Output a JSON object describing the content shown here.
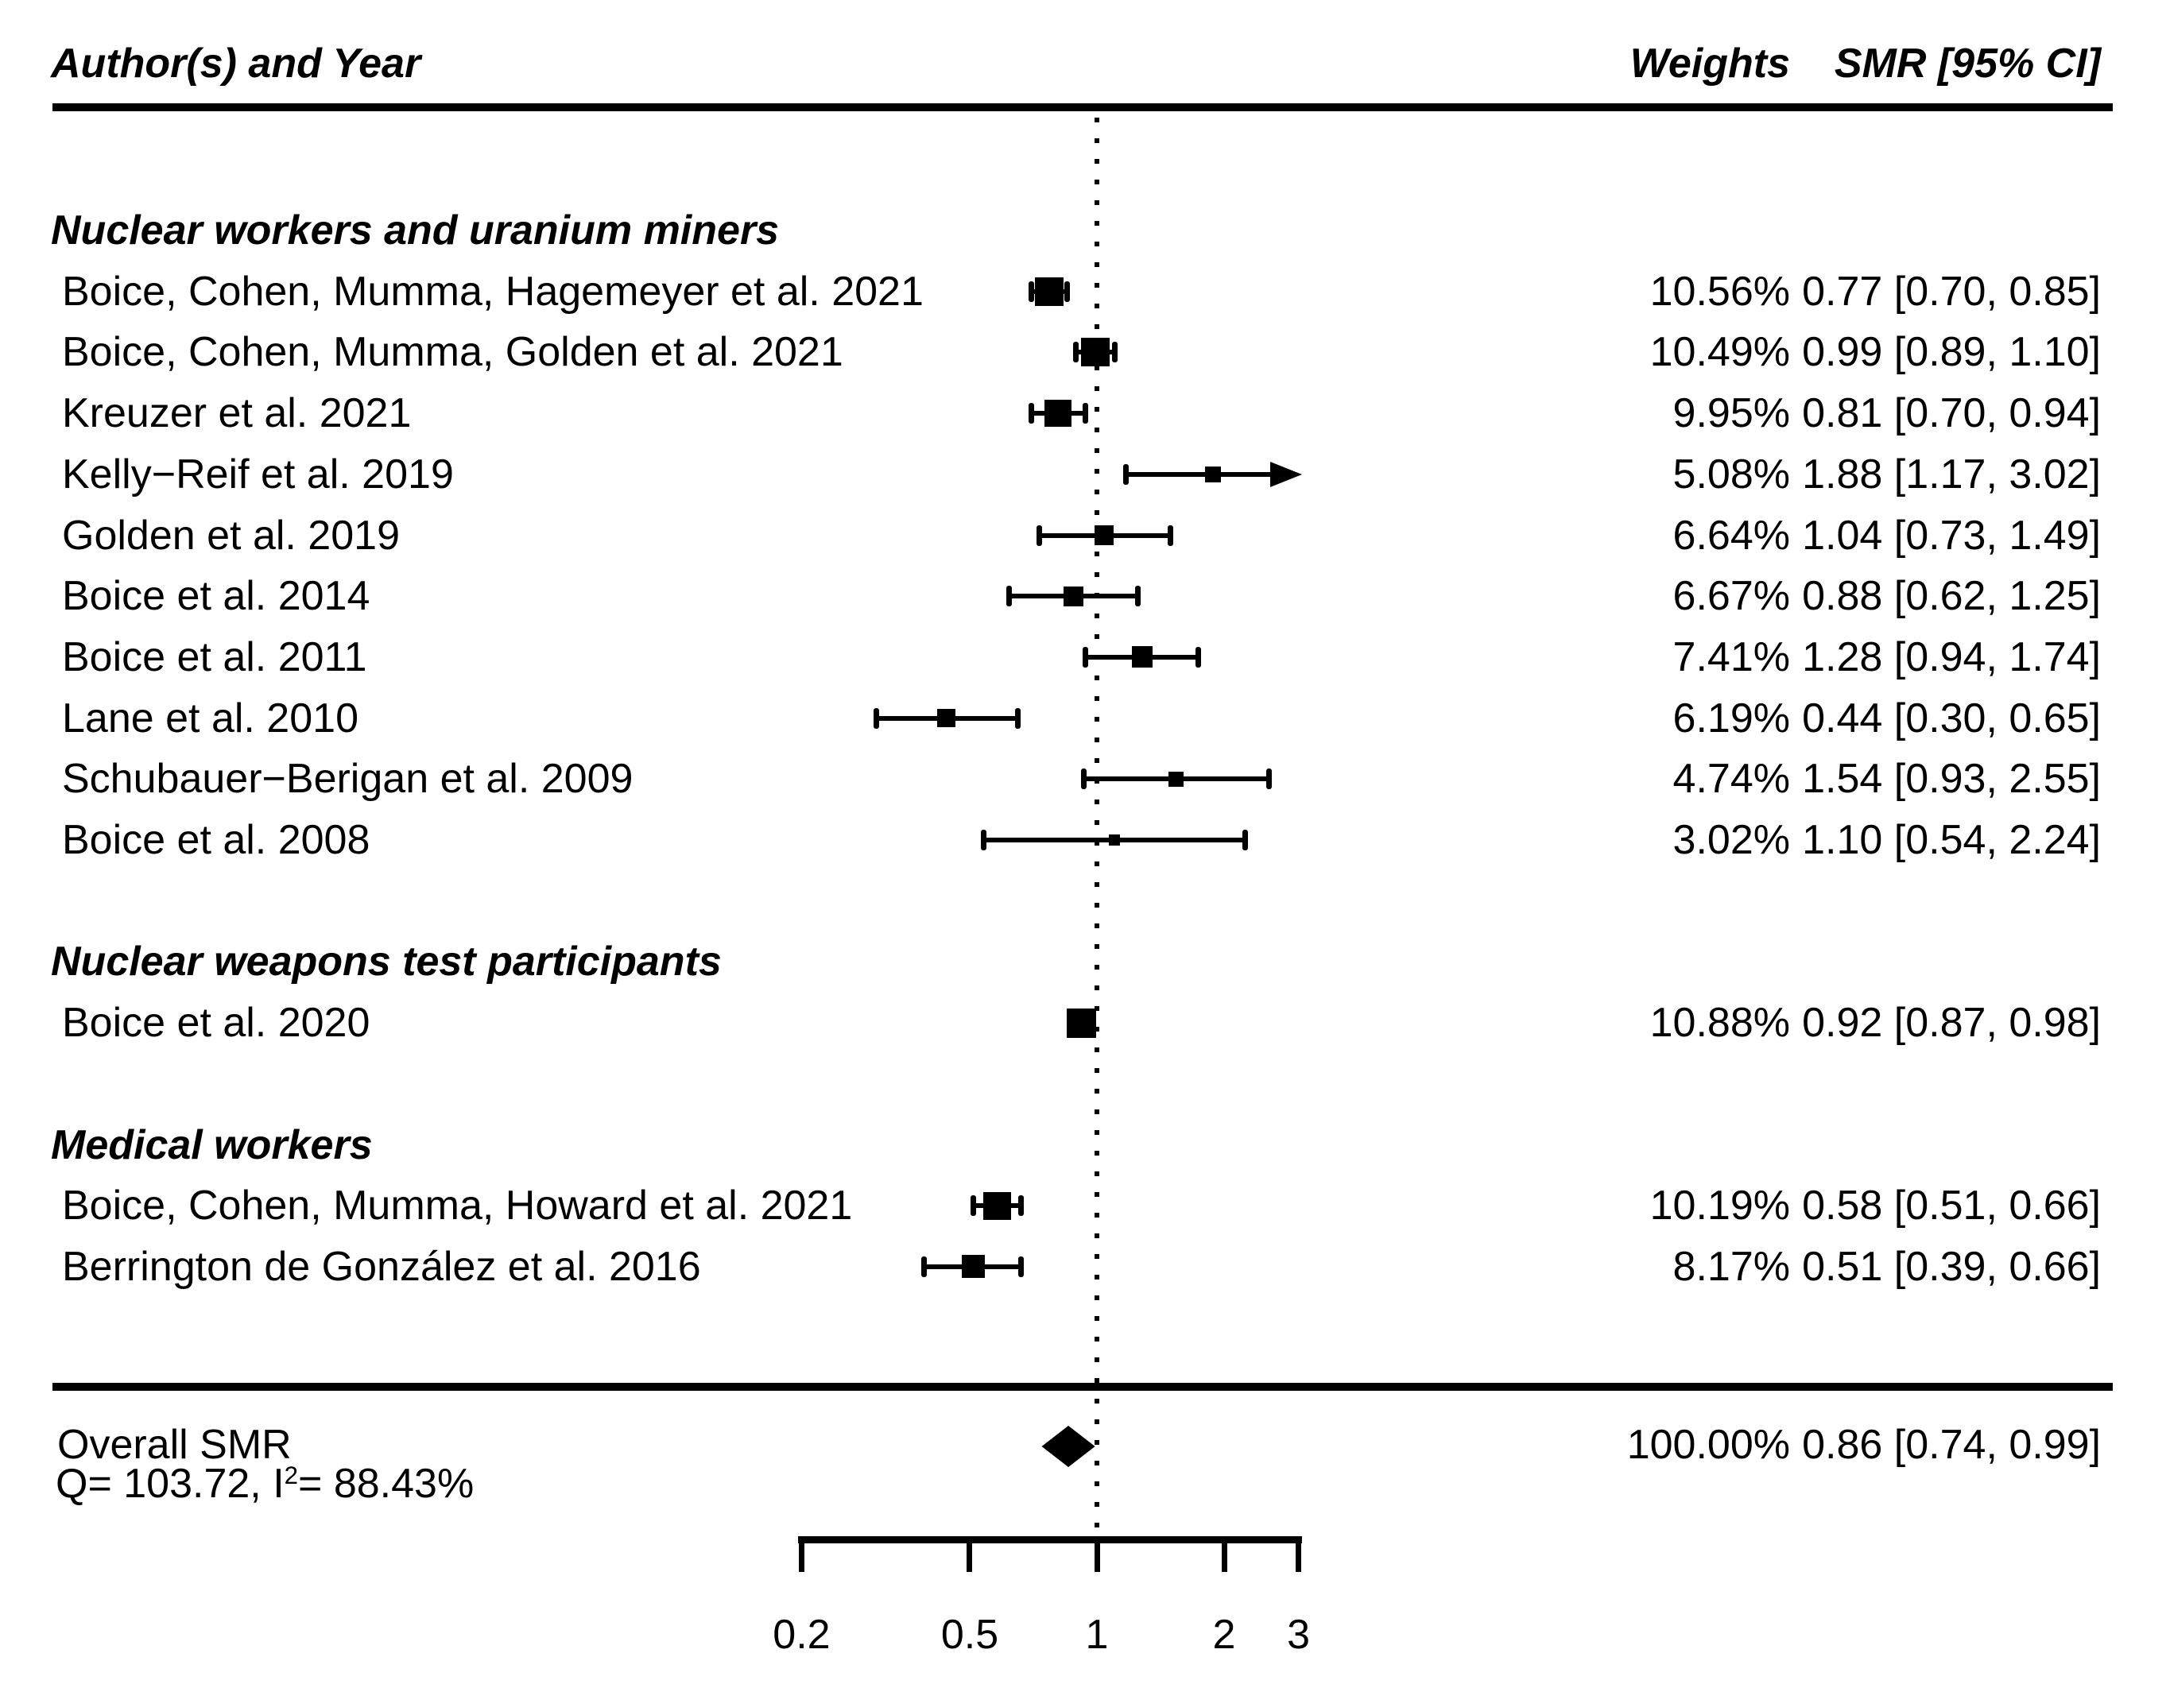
{
  "page": {
    "background": "#ffffff",
    "foreground": "#000000"
  },
  "header": {
    "author_col": "Author(s) and Year",
    "weights_col": "Weights",
    "smr_col": "SMR [95% CI]"
  },
  "chart_data": {
    "type": "forest",
    "x_axis": {
      "scale": "log",
      "ticks": [
        "0.2",
        "0.5",
        "1",
        "2",
        "3"
      ],
      "tick_values": [
        0.2,
        0.5,
        1,
        2,
        3
      ],
      "xlim": [
        0.2,
        3
      ],
      "reference_line": 1
    },
    "groups": [
      {
        "label": "Nuclear workers and uranium miners",
        "studies": [
          {
            "label": "Boice, Cohen, Mumma, Hagemeyer et al. 2021",
            "weight_pct": 10.56,
            "weight_text": "10.56%",
            "smr": 0.77,
            "ci_low": 0.7,
            "ci_high": 0.85,
            "smr_text": "0.77 [0.70, 0.85]",
            "arrow_high": false
          },
          {
            "label": "Boice, Cohen, Mumma, Golden et al. 2021",
            "weight_pct": 10.49,
            "weight_text": "10.49%",
            "smr": 0.99,
            "ci_low": 0.89,
            "ci_high": 1.1,
            "smr_text": "0.99 [0.89, 1.10]",
            "arrow_high": false
          },
          {
            "label": "Kreuzer et al. 2021",
            "weight_pct": 9.95,
            "weight_text": "9.95%",
            "smr": 0.81,
            "ci_low": 0.7,
            "ci_high": 0.94,
            "smr_text": "0.81 [0.70, 0.94]",
            "arrow_high": false
          },
          {
            "label": "Kelly−Reif et al. 2019",
            "weight_pct": 5.08,
            "weight_text": "5.08%",
            "smr": 1.88,
            "ci_low": 1.17,
            "ci_high": 3.02,
            "smr_text": "1.88 [1.17, 3.02]",
            "arrow_high": true
          },
          {
            "label": "Golden et al. 2019",
            "weight_pct": 6.64,
            "weight_text": "6.64%",
            "smr": 1.04,
            "ci_low": 0.73,
            "ci_high": 1.49,
            "smr_text": "1.04 [0.73, 1.49]",
            "arrow_high": false
          },
          {
            "label": "Boice et al. 2014",
            "weight_pct": 6.67,
            "weight_text": "6.67%",
            "smr": 0.88,
            "ci_low": 0.62,
            "ci_high": 1.25,
            "smr_text": "0.88 [0.62, 1.25]",
            "arrow_high": false
          },
          {
            "label": "Boice et al. 2011",
            "weight_pct": 7.41,
            "weight_text": "7.41%",
            "smr": 1.28,
            "ci_low": 0.94,
            "ci_high": 1.74,
            "smr_text": "1.28 [0.94, 1.74]",
            "arrow_high": false
          },
          {
            "label": "Lane et al. 2010",
            "weight_pct": 6.19,
            "weight_text": "6.19%",
            "smr": 0.44,
            "ci_low": 0.3,
            "ci_high": 0.65,
            "smr_text": "0.44 [0.30, 0.65]",
            "arrow_high": false
          },
          {
            "label": "Schubauer−Berigan et al. 2009",
            "weight_pct": 4.74,
            "weight_text": "4.74%",
            "smr": 1.54,
            "ci_low": 0.93,
            "ci_high": 2.55,
            "smr_text": "1.54 [0.93, 2.55]",
            "arrow_high": false
          },
          {
            "label": "Boice et al. 2008",
            "weight_pct": 3.02,
            "weight_text": "3.02%",
            "smr": 1.1,
            "ci_low": 0.54,
            "ci_high": 2.24,
            "smr_text": "1.10 [0.54, 2.24]",
            "arrow_high": false
          }
        ]
      },
      {
        "label": "Nuclear weapons test participants",
        "studies": [
          {
            "label": "Boice et al. 2020",
            "weight_pct": 10.88,
            "weight_text": "10.88%",
            "smr": 0.92,
            "ci_low": 0.87,
            "ci_high": 0.98,
            "smr_text": "0.92 [0.87, 0.98]",
            "arrow_high": false
          }
        ]
      },
      {
        "label": "Medical workers",
        "studies": [
          {
            "label": "Boice, Cohen, Mumma, Howard et al. 2021",
            "weight_pct": 10.19,
            "weight_text": "10.19%",
            "smr": 0.58,
            "ci_low": 0.51,
            "ci_high": 0.66,
            "smr_text": "0.58 [0.51, 0.66]",
            "arrow_high": false
          },
          {
            "label": "Berrington de González et al. 2016",
            "weight_pct": 8.17,
            "weight_text": "8.17%",
            "smr": 0.51,
            "ci_low": 0.39,
            "ci_high": 0.66,
            "smr_text": "0.51 [0.39, 0.66]",
            "arrow_high": false
          }
        ]
      }
    ],
    "overall": {
      "label": "Overall SMR",
      "heterogeneity": {
        "prefix": "Q= 103.72, I",
        "sup": "2",
        "suffix": "= 88.43%"
      },
      "weight_text": "100.00%",
      "smr": 0.86,
      "ci_low": 0.74,
      "ci_high": 0.99,
      "smr_text": "0.86 [0.74, 0.99]"
    }
  }
}
